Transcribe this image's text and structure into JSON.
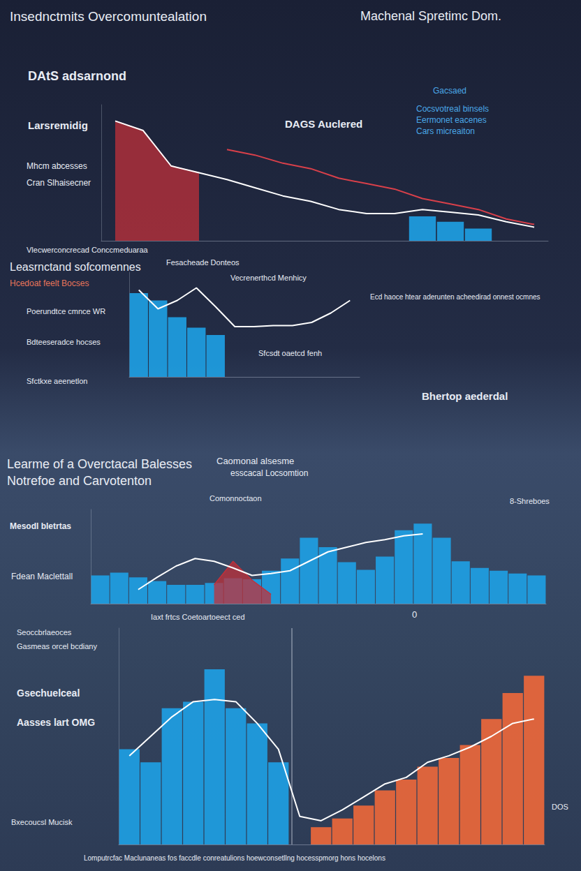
{
  "chart_data": [
    {
      "type": "bar",
      "title": "Insednctmits Overcomuntealation",
      "subtitle": "Machenal Spretimc Dom.",
      "annotations": [
        "DAtS adsarnond",
        "Larsremidig",
        "Mhcm abcesses",
        "Cran Slhaisecner",
        "DAGS Auclered",
        "Gacsaed",
        "Cocsvotreal binsels",
        "Eermonet eacenes",
        "Cars micreaiton",
        "Vlecwerconcrecad Conccmeduaraa",
        "Fesacheade Donteos"
      ],
      "categories": [
        null,
        null,
        null,
        null,
        null,
        null,
        null,
        null,
        null,
        null,
        null,
        null,
        null,
        null,
        null,
        null
      ],
      "series": [
        {
          "type": "area",
          "color": "#c0303a",
          "values": [
            88,
            81,
            55,
            50,
            null,
            null,
            null,
            null,
            null,
            null,
            null,
            null,
            null,
            null,
            null,
            null
          ]
        },
        {
          "type": "bar",
          "color": "#1ea1e6",
          "values": [
            null,
            null,
            null,
            null,
            null,
            null,
            null,
            null,
            null,
            null,
            null,
            18,
            14,
            9,
            null,
            null
          ]
        },
        {
          "type": "line",
          "color": "#d9404a",
          "marker": "none",
          "values": [
            null,
            null,
            null,
            null,
            67,
            63,
            57,
            53,
            46,
            42,
            38,
            31,
            27,
            23,
            16,
            12
          ]
        },
        {
          "type": "line",
          "color": "#ffffff",
          "marker": "none",
          "values": [
            88,
            81,
            55,
            50,
            45,
            39,
            33,
            29,
            23,
            20,
            20,
            23,
            21,
            19,
            14,
            10
          ]
        }
      ],
      "ylim": [
        0,
        100
      ],
      "grid": false,
      "tick_labels": false
    },
    {
      "type": "bar",
      "title": "Leasrnctand sofcomennes",
      "annotations": [
        "Hcedoat feelt Bocses",
        "Poerundtce cmnce WR",
        "Bdteeseradce hocses",
        "Sfctkxe aeenetlon",
        "Vecrenerthcd Menhicy",
        "Ecd haoce htear aderunten acheedirad onnest ocmnes",
        "Sfcsdt oaetcd fenh"
      ],
      "categories": [
        null,
        null,
        null,
        null,
        null,
        null,
        null,
        null,
        null,
        null,
        null,
        null
      ],
      "series": [
        {
          "type": "bar",
          "color": "#1ea1e6",
          "values": [
            80,
            73,
            57,
            47,
            40,
            null,
            null,
            null,
            null,
            null,
            null,
            null
          ]
        },
        {
          "type": "line",
          "color": "#ffffff",
          "marker": "none",
          "values": [
            83,
            65,
            73,
            85,
            67,
            48,
            48,
            49,
            49,
            52,
            61,
            73
          ]
        }
      ],
      "ylim": [
        0,
        100
      ],
      "grid": false,
      "tick_labels": false
    },
    {
      "type": "bar",
      "title": "Learme of a Overctacal Balesses",
      "subtitle": "Notrefoe and Carvotenton",
      "annotations": [
        "Caomonal alsesme",
        "esscacal Locsomtion",
        "Bhertop aederdal",
        "Comonnoctaon",
        "Mesodl bletrtas",
        "Fdean Maclettall",
        "8-Shreboes",
        "0"
      ],
      "categories": [
        null,
        null,
        null,
        null,
        null,
        null,
        null,
        null,
        null,
        null,
        null,
        null,
        null,
        null,
        null,
        null,
        null,
        null,
        null,
        null,
        null,
        null,
        null,
        null
      ],
      "series": [
        {
          "type": "bar",
          "color": "#1ea1e6",
          "values": [
            30,
            33,
            28,
            24,
            20,
            20,
            22,
            27,
            26,
            35,
            48,
            70,
            60,
            44,
            36,
            50,
            78,
            85,
            70,
            45,
            38,
            35,
            32,
            30
          ]
        },
        {
          "type": "area",
          "color": "#c0303a",
          "values": [
            null,
            null,
            null,
            null,
            null,
            null,
            20,
            45,
            25,
            10,
            null,
            null,
            null,
            null,
            null,
            null,
            null,
            null,
            null,
            null,
            null,
            null,
            null,
            null
          ]
        },
        {
          "type": "line",
          "color": "#ffffff",
          "marker": "none",
          "values": [
            null,
            null,
            15,
            28,
            40,
            48,
            45,
            38,
            30,
            32,
            35,
            45,
            55,
            60,
            65,
            68,
            72,
            74,
            null,
            null,
            null,
            null,
            null,
            null
          ]
        }
      ],
      "ylim": [
        0,
        100
      ],
      "grid": false,
      "tick_labels": false
    },
    {
      "type": "bar",
      "annotations": [
        "Iaxt frtcs Coetoartoeect ced",
        "Seoccbrlaeoces",
        "Gasmeas orcel bcdiany",
        "Gsechuelceal",
        "Aasses lart OMG",
        "Bxecoucsl Mucisk",
        "DOS",
        "Lomputrcfac Maclunaneas fos faccdle conreatulions hoewconsetllng hocesspmorg hons hocelons"
      ],
      "categories": [
        null,
        null,
        null,
        null,
        null,
        null,
        null,
        null,
        null,
        null,
        null,
        null,
        null,
        null,
        null,
        null,
        null,
        null,
        null,
        null
      ],
      "series": [
        {
          "type": "bar",
          "color": "#1ea1e6",
          "values": [
            44,
            38,
            63,
            66,
            81,
            63,
            56,
            38,
            null,
            null,
            null,
            null,
            null,
            null,
            null,
            null,
            null,
            null,
            null,
            null
          ]
        },
        {
          "type": "bar",
          "color": "#f0683a",
          "values": [
            null,
            null,
            null,
            null,
            null,
            null,
            null,
            null,
            null,
            8,
            12,
            18,
            25,
            30,
            36,
            40,
            46,
            58,
            70,
            78
          ]
        },
        {
          "type": "line",
          "color": "#ffffff",
          "marker": "none",
          "values": [
            41,
            50,
            59,
            66,
            67,
            66,
            56,
            44,
            13,
            11,
            16,
            22,
            28,
            31,
            38,
            41,
            45,
            50,
            56,
            58
          ]
        }
      ],
      "ylim": [
        0,
        100
      ],
      "grid": false,
      "tick_labels": false
    }
  ]
}
